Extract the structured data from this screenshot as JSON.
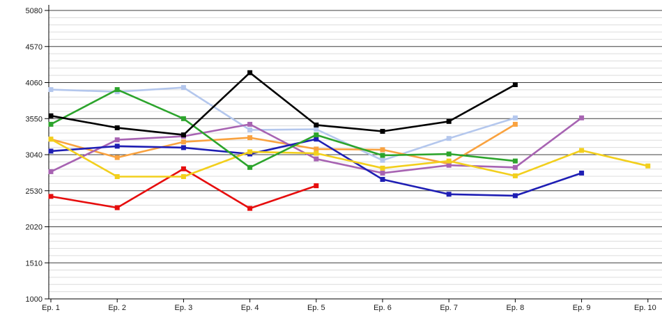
{
  "chart_data": {
    "type": "line",
    "title": "",
    "xlabel": "",
    "ylabel": "",
    "categories": [
      "Ep. 1",
      "Ep. 2",
      "Ep. 3",
      "Ep. 4",
      "Ep. 5",
      "Ep. 6",
      "Ep. 7",
      "Ep. 8",
      "Ep. 9",
      "Ep. 10"
    ],
    "y_ticks": [
      1000,
      1510,
      2020,
      2530,
      3040,
      3550,
      4060,
      4570,
      5080
    ],
    "y_tick_labels": [
      "1000",
      "1510",
      "2020",
      "2530",
      "3040",
      "3550",
      "4060",
      "4570",
      "5080"
    ],
    "ylim": [
      1000,
      5080
    ],
    "minor_grid_step": 102,
    "grid": "on",
    "legend": "none",
    "marker": "square",
    "background_color": "#ffffff",
    "major_grid_color": "#3f3f3f",
    "minor_grid_color": "#dcdcdc",
    "series": [
      {
        "name": "red",
        "color": "#e60d0d",
        "values": [
          2450,
          2290,
          2840,
          2280,
          2600
        ]
      },
      {
        "name": "light-blue",
        "color": "#b4c7ed",
        "values": [
          3960,
          3930,
          3990,
          3390,
          3400,
          2960,
          3270,
          3560
        ]
      },
      {
        "name": "orange",
        "color": "#f9a23f",
        "values": [
          3260,
          3000,
          3220,
          3280,
          3120,
          3110,
          2910,
          3470
        ]
      },
      {
        "name": "purple",
        "color": "#a763b2",
        "values": [
          2800,
          3250,
          3300,
          3470,
          2980,
          2780,
          2890,
          2860,
          3560
        ]
      },
      {
        "name": "navy",
        "color": "#1e1eb4",
        "values": [
          3090,
          3160,
          3140,
          3050,
          3260,
          2690,
          2480,
          2460,
          2780
        ]
      },
      {
        "name": "yellow",
        "color": "#f2cf1d",
        "values": [
          3260,
          2730,
          2730,
          3080,
          3060,
          2850,
          2950,
          2740,
          3100,
          2880
        ]
      },
      {
        "name": "green",
        "color": "#2ca42c",
        "values": [
          3470,
          3960,
          3550,
          2860,
          3320,
          3030,
          3050,
          2950
        ]
      },
      {
        "name": "black",
        "color": "#000000",
        "values": [
          3590,
          3420,
          3320,
          4200,
          3460,
          3370,
          3510,
          4030
        ]
      }
    ]
  }
}
